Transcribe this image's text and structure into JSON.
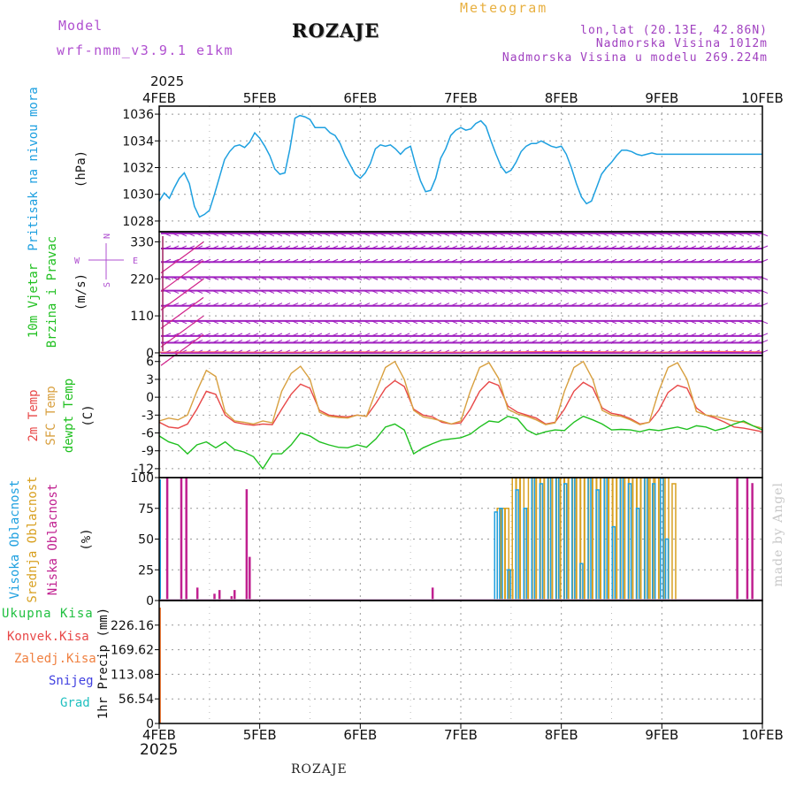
{
  "header": {
    "model_label": "Model",
    "model_name": "wrf-nmm_v3.9.1 e1km",
    "title": "ROZAJE",
    "subtitle": "Meteogram",
    "coords": "lon,lat (20.13E, 42.86N)",
    "elevation": "Nadmorska Visina 1012m",
    "model_elevation": "Nadmorska Visina u modelu 269.224m",
    "footer_title": "ROZAJE",
    "watermark": "made by Angel",
    "year_top": "2025",
    "year_bottom": "2025"
  },
  "colors": {
    "pressure": "#1ea0e0",
    "wind": "#a020c0",
    "wind_speed": "#ff6060",
    "temp2m": "#e84848",
    "sfc": "#d8a040",
    "dewpt": "#20c020",
    "cloud_high": "#1ea0e0",
    "cloud_mid": "#d8a020",
    "cloud_low": "#c02090",
    "precip_total": "#20c040",
    "precip_conv": "#e84848",
    "precip_frozen": "#f08040",
    "precip_snow": "#4040e0",
    "precip_graupel": "#20c0c0",
    "model_text": "#b050d0",
    "header_text": "#a040c0",
    "meteogram_text": "#e8b040"
  },
  "chart_data": [
    {
      "type": "line",
      "panel": "pressure",
      "ylabel": [
        "Pritisak na nivou mora",
        "(hPa)"
      ],
      "ylim": [
        1027.2,
        1036.6
      ],
      "yticks": [
        1028,
        1030,
        1032,
        1034,
        1036
      ],
      "x_days": [
        0,
        0.05,
        0.1,
        0.15,
        0.2,
        0.25,
        0.3,
        0.35,
        0.4,
        0.45,
        0.5,
        0.55,
        0.6,
        0.65,
        0.7,
        0.75,
        0.8,
        0.85,
        0.9,
        0.95,
        1.0,
        1.05,
        1.1,
        1.15,
        1.2,
        1.25,
        1.3,
        1.35,
        1.4,
        1.45,
        1.5,
        1.55,
        1.6,
        1.65,
        1.7,
        1.75,
        1.8,
        1.85,
        1.9,
        1.95,
        2.0,
        2.05,
        2.1,
        2.15,
        2.2,
        2.25,
        2.3,
        2.35,
        2.4,
        2.45,
        2.5,
        2.55,
        2.6,
        2.65,
        2.7,
        2.75,
        2.8,
        2.85,
        2.9,
        2.95,
        3.0,
        3.05,
        3.1,
        3.15,
        3.2,
        3.25,
        3.3,
        3.35,
        3.4,
        3.45,
        3.5,
        3.55,
        3.6,
        3.65,
        3.7,
        3.75,
        3.8,
        3.85,
        3.9,
        3.95,
        4.0,
        4.05,
        4.1,
        4.15,
        4.2,
        4.25,
        4.3,
        4.35,
        4.4,
        4.45,
        4.5,
        4.55,
        4.6,
        4.65,
        4.7,
        4.75,
        4.8,
        4.85,
        4.9,
        4.95,
        5.0,
        5.05,
        5.1,
        5.15,
        5.2,
        5.25,
        5.3,
        5.35,
        5.4,
        5.45,
        5.5,
        5.55,
        5.6,
        5.65,
        5.7,
        5.75,
        5.8,
        5.85,
        5.9,
        5.95,
        6.0
      ],
      "values": [
        1029.5,
        1030.1,
        1029.7,
        1030.5,
        1031.2,
        1031.6,
        1030.8,
        1029.1,
        1028.3,
        1028.5,
        1028.8,
        1030.0,
        1031.3,
        1032.6,
        1033.2,
        1033.6,
        1033.7,
        1033.5,
        1033.9,
        1034.6,
        1034.2,
        1033.6,
        1032.9,
        1031.9,
        1031.5,
        1031.6,
        1033.4,
        1035.7,
        1035.9,
        1035.8,
        1035.6,
        1035.0,
        1035.0,
        1035.0,
        1034.6,
        1034.4,
        1033.8,
        1032.9,
        1032.2,
        1031.5,
        1031.2,
        1031.6,
        1032.3,
        1033.4,
        1033.7,
        1033.6,
        1033.7,
        1033.4,
        1033.0,
        1033.4,
        1033.6,
        1032.2,
        1031.0,
        1030.2,
        1030.3,
        1031.2,
        1032.7,
        1033.4,
        1034.4,
        1034.8,
        1035.0,
        1034.8,
        1034.9,
        1035.3,
        1035.5,
        1035.1,
        1034.0,
        1033.0,
        1032.1,
        1031.6,
        1031.8,
        1032.4,
        1033.2,
        1033.6,
        1033.8,
        1033.8,
        1034.0,
        1033.8,
        1033.6,
        1033.5,
        1033.6,
        1033.0,
        1032.0,
        1030.8,
        1029.8,
        1029.3,
        1029.5,
        1030.5,
        1031.5,
        1032.0,
        1032.4,
        1032.9,
        1033.3,
        1033.3,
        1033.2,
        1033.0,
        1032.9,
        1033.0,
        1033.1,
        1033.0,
        1033.0,
        1033.0,
        1033.0,
        1033.0,
        1033.0,
        1033.0,
        1033.0,
        1033.0,
        1033.0,
        1033.0,
        1033.0,
        1033.0,
        1033.0,
        1033.0,
        1033.0,
        1033.0,
        1033.0,
        1033.0,
        1033.0,
        1033.0,
        1033.0
      ]
    },
    {
      "type": "line",
      "panel": "wind",
      "ylabel": [
        "10m Vjetar",
        "Brzina i Pravac",
        "(m/s)"
      ],
      "ylim": [
        -8,
        360
      ],
      "yticks": [
        0,
        110,
        220,
        330
      ],
      "compass": [
        "N",
        "E",
        "S",
        "W"
      ],
      "barb_rows": [
        0,
        30,
        50,
        95,
        140,
        185,
        225,
        270,
        310,
        355
      ],
      "speed_x_days": [
        0,
        0.5,
        1.0,
        1.5,
        2.0,
        2.5,
        3.0,
        3.5,
        4.0,
        4.5,
        5.0,
        5.5,
        6.0
      ],
      "speed_values": [
        2,
        3,
        2,
        2,
        3,
        2,
        2,
        3,
        4,
        3,
        2,
        4,
        3
      ]
    },
    {
      "type": "line",
      "panel": "temperature",
      "ylabel": [
        "2m Temp",
        "SFC Temp",
        "dewpt Temp",
        "(C)"
      ],
      "ylim": [
        -13.5,
        7
      ],
      "yticks": [
        -12,
        -9,
        -6,
        -3,
        0,
        3,
        6
      ],
      "series": [
        {
          "name": "2m Temp",
          "color_key": "temp2m",
          "values": [
            -4.2,
            -5.0,
            -5.2,
            -4.5,
            -2.0,
            1.0,
            0.5,
            -3.0,
            -4.2,
            -4.5,
            -4.7,
            -4.5,
            -4.6,
            -2.0,
            0.5,
            2.2,
            1.5,
            -2.2,
            -3.0,
            -3.2,
            -3.3,
            -3.0,
            -3.2,
            -1.0,
            1.5,
            2.8,
            1.8,
            -2.0,
            -3.0,
            -3.3,
            -4.2,
            -4.5,
            -4.3,
            -2.0,
            1.0,
            2.6,
            2.0,
            -1.5,
            -2.5,
            -3.0,
            -3.5,
            -4.5,
            -4.2,
            -2.0,
            1.0,
            2.5,
            1.6,
            -1.8,
            -2.7,
            -3.0,
            -3.6,
            -4.5,
            -4.2,
            -2.2,
            0.8,
            2.0,
            1.5,
            -1.8,
            -3.0,
            -3.5,
            -4.2,
            -5.0,
            -5.2,
            -5.5,
            -5.8
          ]
        },
        {
          "name": "SFC Temp",
          "color_key": "sfc",
          "values": [
            -4.0,
            -3.5,
            -3.8,
            -3.0,
            1.0,
            4.5,
            3.5,
            -2.5,
            -4.0,
            -4.2,
            -4.5,
            -4.0,
            -4.3,
            1.0,
            4.0,
            5.2,
            3.0,
            -2.5,
            -3.2,
            -3.4,
            -3.5,
            -3.0,
            -3.2,
            1.0,
            5.0,
            6.0,
            3.0,
            -2.2,
            -3.3,
            -3.6,
            -4.0,
            -4.5,
            -4.0,
            1.0,
            5.0,
            5.8,
            3.2,
            -2.0,
            -2.8,
            -3.2,
            -3.8,
            -4.6,
            -4.3,
            1.0,
            5.0,
            6.0,
            3.0,
            -2.2,
            -3.0,
            -3.2,
            -3.8,
            -4.6,
            -4.2,
            1.0,
            5.0,
            5.8,
            3.0,
            -2.4,
            -3.0,
            -3.2,
            -3.6,
            -4.0,
            -4.2,
            -4.8,
            -5.2
          ]
        },
        {
          "name": "dewpt Temp",
          "color_key": "dewpt",
          "values": [
            -6.5,
            -7.5,
            -8.0,
            -9.5,
            -8.0,
            -7.5,
            -8.5,
            -7.5,
            -8.8,
            -9.2,
            -10.0,
            -12.0,
            -9.5,
            -9.5,
            -8.0,
            -6.0,
            -6.5,
            -7.5,
            -8.0,
            -8.4,
            -8.5,
            -8.0,
            -8.4,
            -7.0,
            -5.0,
            -4.5,
            -5.5,
            -9.5,
            -8.5,
            -7.8,
            -7.2,
            -7.0,
            -6.8,
            -6.2,
            -5.0,
            -4.0,
            -4.2,
            -3.2,
            -3.6,
            -5.5,
            -6.3,
            -5.8,
            -5.5,
            -5.6,
            -4.2,
            -3.2,
            -3.8,
            -4.5,
            -5.5,
            -5.4,
            -5.5,
            -5.8,
            -5.4,
            -5.6,
            -5.3,
            -5.0,
            -5.4,
            -4.8,
            -5.0,
            -5.6,
            -5.2,
            -4.5,
            -4.0,
            -4.8,
            -5.5
          ]
        }
      ]
    },
    {
      "type": "bar",
      "panel": "clouds",
      "ylabel": [
        "Visoka Oblacnost",
        "Srednja Oblacnost",
        "Niska Oblacnost",
        "(%)"
      ],
      "ylim": [
        0,
        100
      ],
      "yticks": [
        0,
        25,
        50,
        75,
        100
      ],
      "low_bars": [
        [
          0.08,
          100
        ],
        [
          0.22,
          100
        ],
        [
          0.27,
          100
        ],
        [
          0.38,
          10
        ],
        [
          0.55,
          5
        ],
        [
          0.6,
          8
        ],
        [
          0.72,
          3
        ],
        [
          0.75,
          8
        ],
        [
          0.87,
          90
        ],
        [
          0.9,
          35
        ],
        [
          2.72,
          10
        ],
        [
          5.75,
          100
        ],
        [
          5.85,
          100
        ],
        [
          5.9,
          95
        ]
      ],
      "mid_bars": [
        [
          3.38,
          75
        ],
        [
          3.42,
          75
        ],
        [
          3.46,
          75
        ],
        [
          3.5,
          25
        ],
        [
          3.53,
          100
        ],
        [
          3.57,
          100
        ],
        [
          3.61,
          100
        ],
        [
          3.65,
          75
        ],
        [
          3.69,
          100
        ],
        [
          3.73,
          100
        ],
        [
          3.77,
          100
        ],
        [
          3.81,
          100
        ],
        [
          3.85,
          100
        ],
        [
          3.89,
          100
        ],
        [
          3.93,
          100
        ],
        [
          3.97,
          100
        ],
        [
          4.01,
          100
        ],
        [
          4.05,
          100
        ],
        [
          4.09,
          100
        ],
        [
          4.13,
          100
        ],
        [
          4.17,
          100
        ],
        [
          4.21,
          100
        ],
        [
          4.25,
          100
        ],
        [
          4.29,
          100
        ],
        [
          4.33,
          100
        ],
        [
          4.37,
          100
        ],
        [
          4.41,
          100
        ],
        [
          4.45,
          100
        ],
        [
          4.49,
          100
        ],
        [
          4.53,
          100
        ],
        [
          4.57,
          100
        ],
        [
          4.61,
          100
        ],
        [
          4.65,
          100
        ],
        [
          4.69,
          100
        ],
        [
          4.73,
          100
        ],
        [
          4.77,
          100
        ],
        [
          4.81,
          100
        ],
        [
          4.85,
          100
        ],
        [
          4.9,
          100
        ],
        [
          4.95,
          100
        ],
        [
          5.0,
          100
        ],
        [
          5.05,
          100
        ],
        [
          5.12,
          95
        ]
      ],
      "high_bars": [
        [
          3.35,
          72
        ],
        [
          3.4,
          75
        ],
        [
          3.48,
          25
        ],
        [
          3.56,
          90
        ],
        [
          3.64,
          75
        ],
        [
          3.72,
          100
        ],
        [
          3.8,
          95
        ],
        [
          3.88,
          100
        ],
        [
          3.96,
          100
        ],
        [
          4.04,
          95
        ],
        [
          4.12,
          100
        ],
        [
          4.2,
          30
        ],
        [
          4.28,
          100
        ],
        [
          4.36,
          90
        ],
        [
          4.44,
          100
        ],
        [
          4.52,
          60
        ],
        [
          4.6,
          100
        ],
        [
          4.68,
          95
        ],
        [
          4.76,
          75
        ],
        [
          4.84,
          100
        ],
        [
          4.92,
          95
        ],
        [
          5.0,
          100
        ],
        [
          5.05,
          50
        ]
      ]
    },
    {
      "type": "bar",
      "panel": "precip",
      "ylabel": [
        "1hr Precip (mm)"
      ],
      "legend": [
        "Ukupna Kisa",
        "Konvek.Kisa",
        "Zaledj.Kisa",
        "Snijeg",
        "Grad"
      ],
      "ylim": [
        0,
        282.7
      ],
      "yticks": [
        0,
        56.54,
        113.08,
        169.62,
        226.16
      ]
    }
  ],
  "x_axis": {
    "days": [
      "4FEB",
      "5FEB",
      "6FEB",
      "7FEB",
      "8FEB",
      "9FEB",
      "10FEB"
    ]
  }
}
